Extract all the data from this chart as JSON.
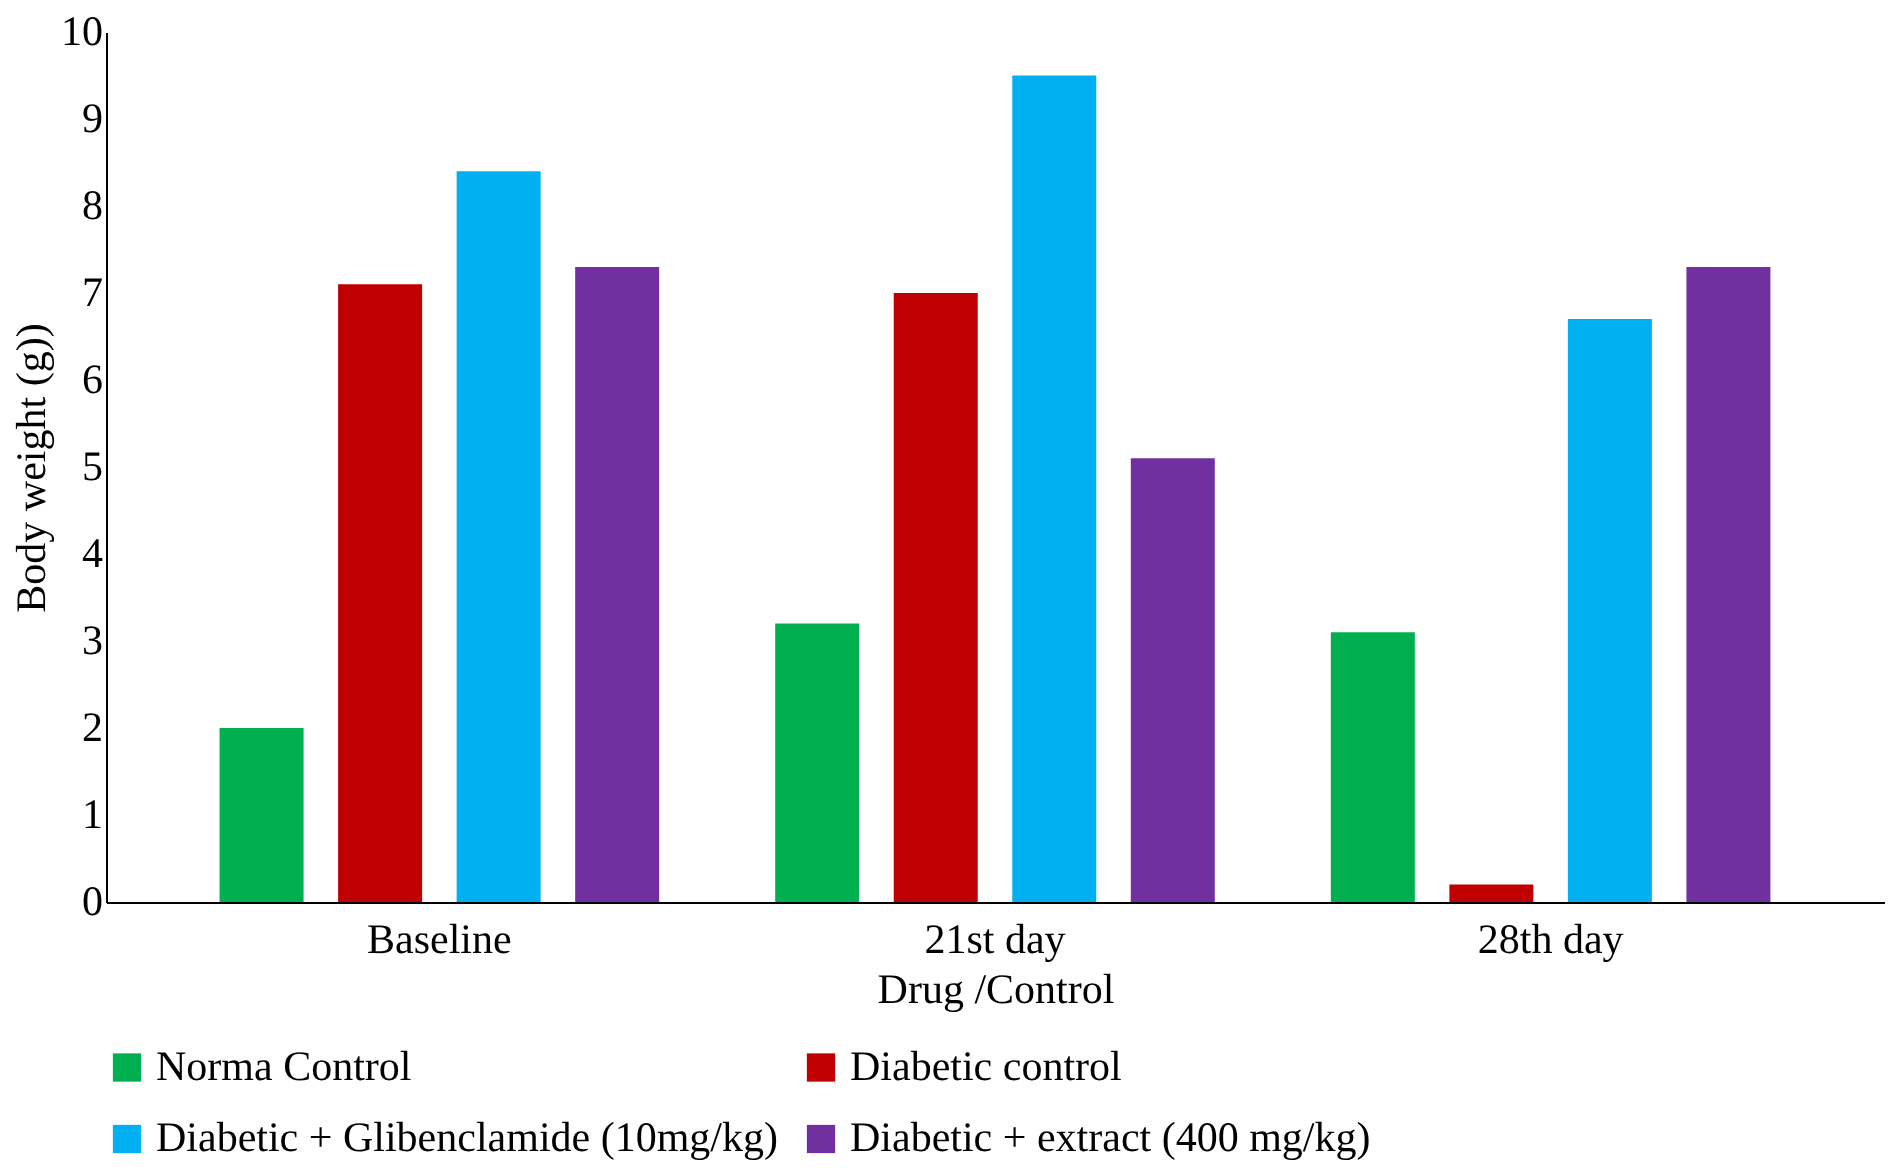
{
  "chart_data": {
    "type": "bar",
    "xlabel": "Drug /Control",
    "ylabel": "Body weight (g))",
    "categories": [
      "Baseline",
      "21st day",
      "28th day"
    ],
    "series": [
      {
        "name": "Norma Control",
        "color": "#00b050",
        "values": [
          2.0,
          3.2,
          3.1
        ]
      },
      {
        "name": "Diabetic control",
        "color": "#c00000",
        "values": [
          7.1,
          7.0,
          0.2
        ]
      },
      {
        "name": "Diabetic + Glibenclamide (10mg/kg)",
        "color": "#00b0f0",
        "values": [
          8.4,
          9.5,
          6.7
        ]
      },
      {
        "name": "Diabetic + extract (400 mg/kg)",
        "color": "#7030a0",
        "values": [
          7.3,
          5.1,
          7.3
        ]
      }
    ],
    "ylim": [
      0,
      10
    ],
    "yticks": [
      0,
      1,
      2,
      3,
      4,
      5,
      6,
      7,
      8,
      9,
      10
    ],
    "grid": false,
    "legend": "bottom"
  }
}
